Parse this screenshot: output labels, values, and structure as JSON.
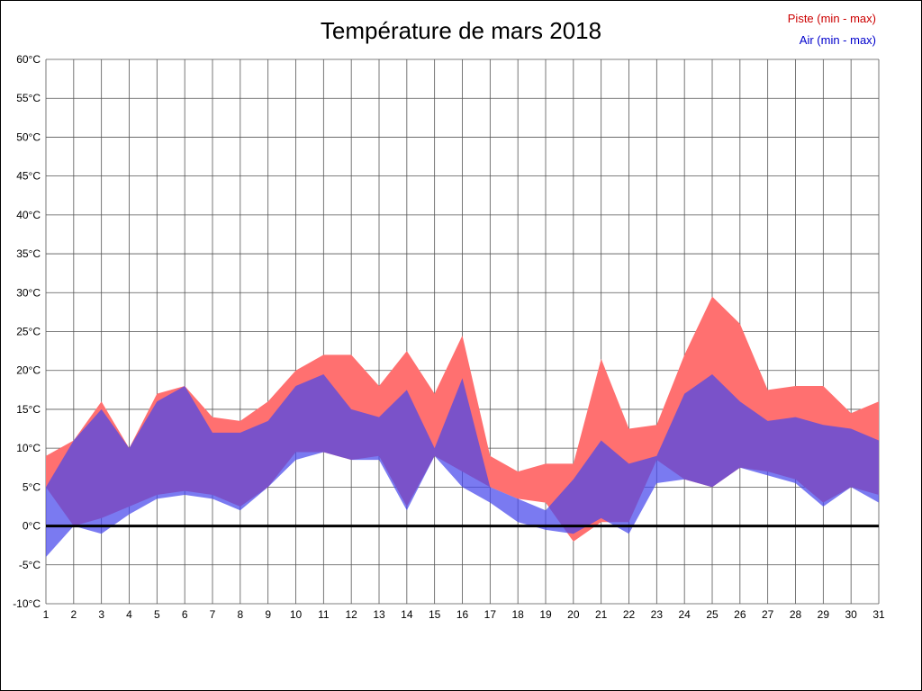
{
  "title": "Température de mars 2018",
  "legend": {
    "piste_label": "Piste (min - max)",
    "air_label": "Air (min - max)"
  },
  "colors": {
    "piste_band": "#ff7070",
    "air_band": "#4646eb",
    "air_band_opacity": 0.72,
    "piste_legend_text": "#cc0000",
    "air_legend_text": "#0000cc",
    "grid": "#555555",
    "zero_line": "#000000",
    "tick_text": "#000000"
  },
  "chart_data": {
    "type": "area",
    "title": "Température de mars 2018",
    "xlabel": "",
    "ylabel": "",
    "unit": "°C",
    "x": [
      1,
      2,
      3,
      4,
      5,
      6,
      7,
      8,
      9,
      10,
      11,
      12,
      13,
      14,
      15,
      16,
      17,
      18,
      19,
      20,
      21,
      22,
      23,
      24,
      25,
      26,
      27,
      28,
      29,
      30,
      31
    ],
    "ylim": [
      -10,
      60
    ],
    "ytick_step": 5,
    "grid": true,
    "legend_position": "top-right",
    "series": [
      {
        "name": "Piste (min - max)",
        "min": [
          5,
          0,
          1,
          2.5,
          4,
          4.5,
          4,
          2.5,
          5,
          9.5,
          9.5,
          8.5,
          9,
          2.5,
          9,
          7,
          5,
          3.5,
          3,
          -2,
          0.5,
          0.5,
          8.5,
          6,
          5,
          7.5,
          7,
          6,
          3,
          5,
          4
        ],
        "max": [
          9,
          11,
          16,
          10,
          17,
          18,
          14,
          13.5,
          16,
          20,
          22,
          22,
          18,
          22.5,
          17,
          24.5,
          9,
          7,
          8,
          8,
          21.5,
          12.5,
          13,
          22,
          29.5,
          26,
          17.5,
          18,
          18,
          14.5,
          16
        ]
      },
      {
        "name": "Air (min - max)",
        "min": [
          -4,
          0,
          -1,
          1.5,
          3.5,
          4,
          3.5,
          2,
          5,
          8.5,
          9.5,
          8.5,
          8.5,
          2,
          9,
          5,
          3,
          0.5,
          -0.5,
          -1,
          1,
          -1,
          5.5,
          6,
          5,
          7.5,
          6.5,
          5.5,
          2.5,
          5,
          3
        ],
        "max": [
          5,
          11,
          15,
          10,
          16,
          18,
          12,
          12,
          13.5,
          18,
          19.5,
          15,
          14,
          17.5,
          10,
          19,
          5,
          3.5,
          2,
          6,
          11,
          8,
          9,
          17,
          19.5,
          16,
          13.5,
          14,
          13,
          12.5,
          11
        ]
      }
    ]
  }
}
